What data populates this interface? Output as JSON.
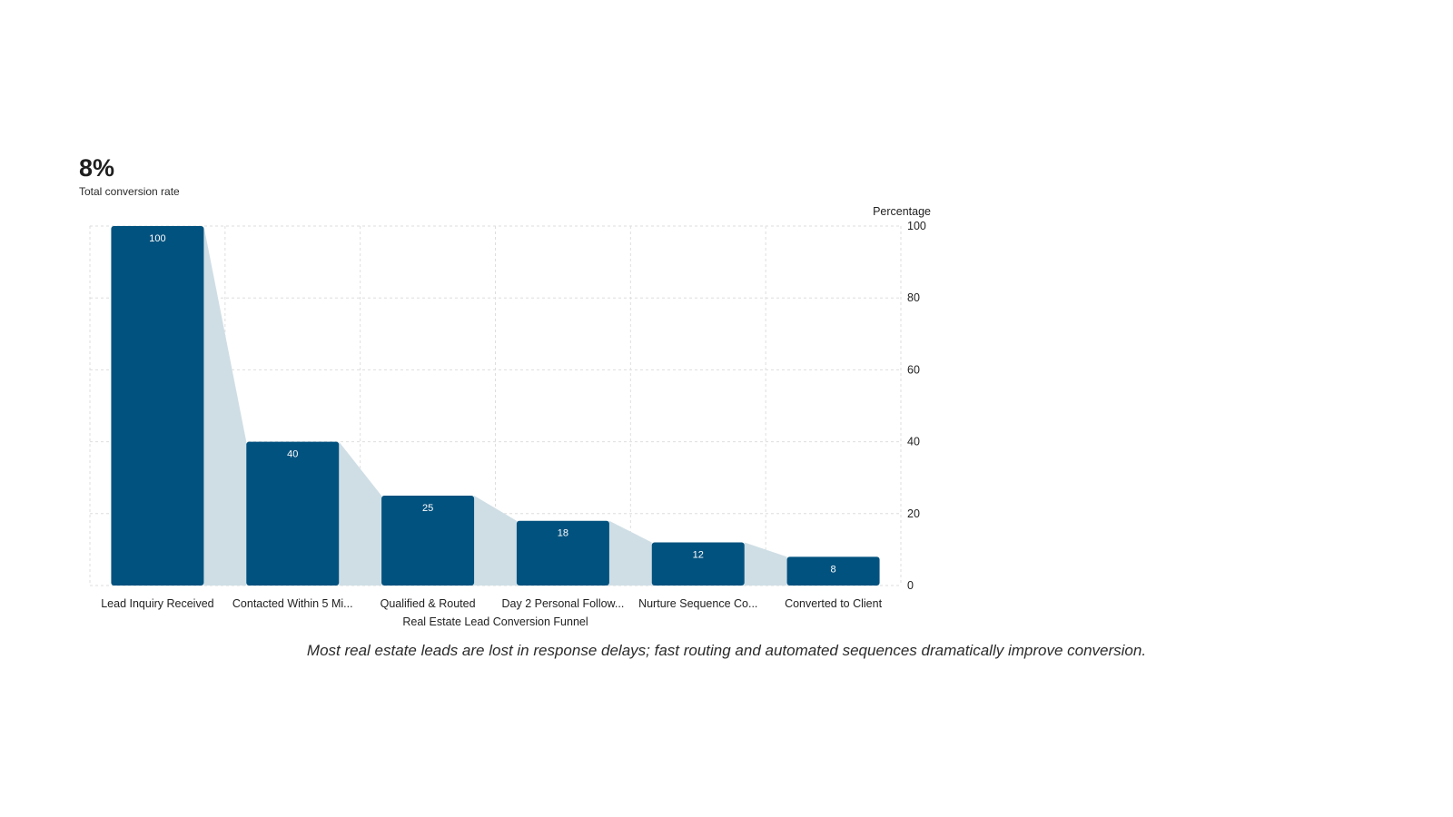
{
  "kpi": {
    "value": "8%",
    "label": "Total conversion rate"
  },
  "caption": "Most real estate leads are lost in response delays; fast routing and automated sequences dramatically improve conversion.",
  "colors": {
    "bar": "#02527f",
    "funnel_fill": "#cfdee5",
    "grid": "#dedede",
    "label_on_bar": "#ffffff",
    "text": "#222222"
  },
  "chart_data": {
    "type": "bar",
    "categories": [
      "Lead Inquiry Received",
      "Contacted Within 5 Mi...",
      "Qualified & Routed",
      "Day 2 Personal Follow...",
      "Nurture Sequence Co...",
      "Converted to Client"
    ],
    "values": [
      100,
      40,
      25,
      18,
      12,
      8
    ],
    "xlabel": "Real Estate Lead Conversion Funnel",
    "ylabel": "Percentage",
    "ylim": [
      0,
      100
    ],
    "yticks": [
      0,
      20,
      40,
      60,
      80,
      100
    ],
    "y_axis_side": "right",
    "grid": true,
    "data_labels": true,
    "funnel_connectors": true
  }
}
